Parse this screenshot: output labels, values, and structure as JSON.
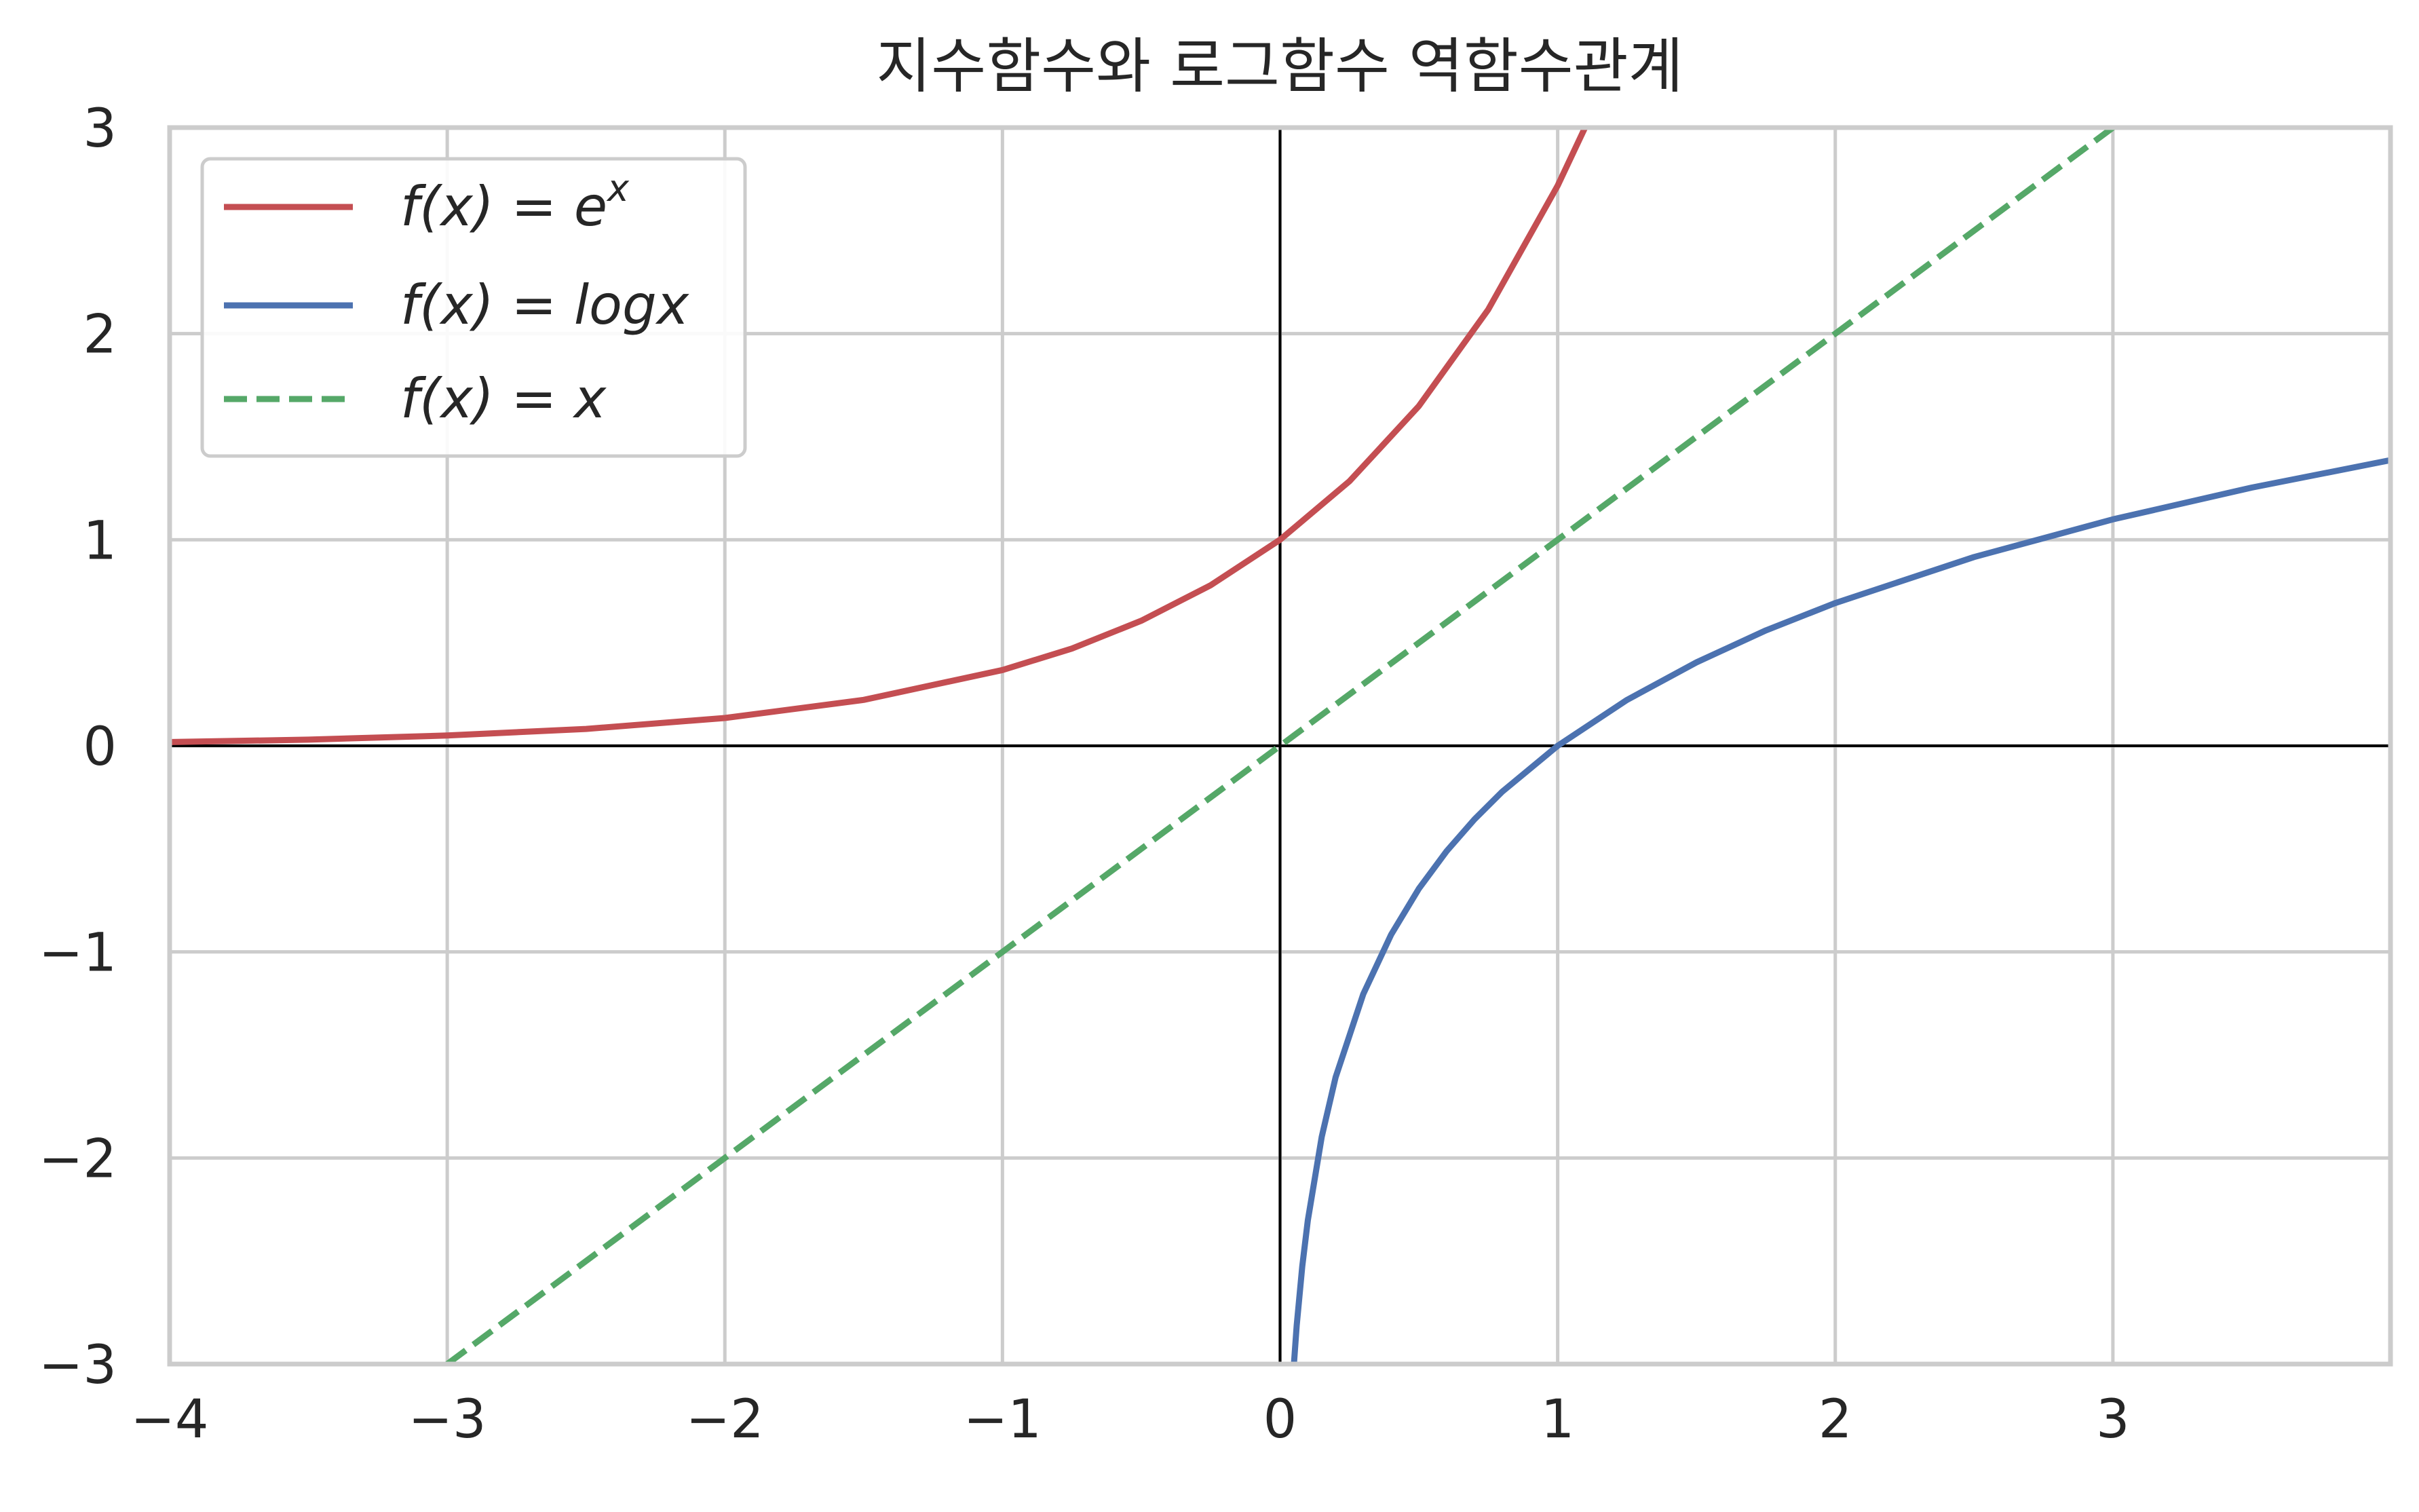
{
  "chart_data": {
    "type": "line",
    "title": "지수함수와 로그함수 역함수관계",
    "xlabel": "",
    "ylabel": "",
    "xlim": [
      -4,
      4
    ],
    "ylim": [
      -3,
      3
    ],
    "grid": true,
    "legend_position": "top-left",
    "xticks": [
      {
        "value": -4,
        "label": "−4"
      },
      {
        "value": -3,
        "label": "−3"
      },
      {
        "value": -2,
        "label": "−2"
      },
      {
        "value": -1,
        "label": "−1"
      },
      {
        "value": 0,
        "label": "0"
      },
      {
        "value": 1,
        "label": "1"
      },
      {
        "value": 2,
        "label": "2"
      },
      {
        "value": 3,
        "label": "3"
      }
    ],
    "yticks": [
      {
        "value": 3,
        "label": "3"
      },
      {
        "value": 2,
        "label": "2"
      },
      {
        "value": 1,
        "label": "1"
      },
      {
        "value": 0,
        "label": "0"
      },
      {
        "value": -1,
        "label": "−1"
      },
      {
        "value": -2,
        "label": "−2"
      },
      {
        "value": -3,
        "label": "−3"
      }
    ],
    "series": [
      {
        "name": "f(x) = e^x",
        "legend_main": "f(x) = e",
        "legend_sup": "x",
        "color": "#c44e52",
        "dash": "solid",
        "x": [
          -4,
          -3.5,
          -3,
          -2.5,
          -2,
          -1.5,
          -1,
          -0.75,
          -0.5,
          -0.25,
          0,
          0.25,
          0.5,
          0.75,
          1,
          1.1
        ],
        "y": [
          0.018,
          0.03,
          0.05,
          0.082,
          0.135,
          0.223,
          0.368,
          0.472,
          0.607,
          0.779,
          1.0,
          1.284,
          1.649,
          2.117,
          2.718,
          3.004
        ]
      },
      {
        "name": "f(x) = logx",
        "legend_main": "f(x) = logx",
        "legend_sup": "",
        "color": "#4c72b0",
        "dash": "solid",
        "x": [
          0.05,
          0.06,
          0.08,
          0.1,
          0.15,
          0.2,
          0.3,
          0.4,
          0.5,
          0.6,
          0.7,
          0.8,
          1.0,
          1.25,
          1.5,
          1.75,
          2.0,
          2.5,
          3.0,
          3.5,
          4.0
        ],
        "y": [
          -2.996,
          -2.813,
          -2.526,
          -2.303,
          -1.897,
          -1.609,
          -1.204,
          -0.916,
          -0.693,
          -0.511,
          -0.357,
          -0.223,
          0.0,
          0.223,
          0.405,
          0.56,
          0.693,
          0.916,
          1.099,
          1.253,
          1.386
        ]
      },
      {
        "name": "f(x) = x",
        "legend_main": "f(x) = x",
        "legend_sup": "",
        "color": "#55a868",
        "dash": "dashed",
        "x": [
          -3,
          3
        ],
        "y": [
          -3,
          3
        ]
      }
    ]
  }
}
